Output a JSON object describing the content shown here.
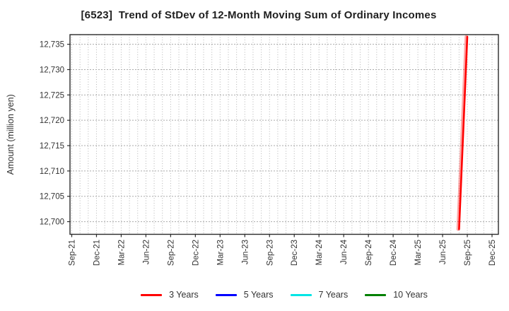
{
  "title": "[6523]  Trend of StDev of 12-Month Moving Sum of Ordinary Incomes",
  "chart_data": {
    "type": "line",
    "title": "[6523]  Trend of StDev of 12-Month Moving Sum of Ordinary Incomes",
    "ylabel": "Amount (million yen)",
    "xlabel": "",
    "grid": "dotted",
    "legend_position": "bottom",
    "x_tick_labels": [
      "Sep-21",
      "Dec-21",
      "Mar-22",
      "Jun-22",
      "Sep-22",
      "Dec-22",
      "Mar-23",
      "Jun-23",
      "Sep-23",
      "Dec-23",
      "Mar-24",
      "Jun-24",
      "Sep-24",
      "Dec-24",
      "Mar-25",
      "Jun-25",
      "Sep-25",
      "Dec-25"
    ],
    "months_per_tick": 3,
    "total_months": 52,
    "x_range": [
      "Sep-21",
      "Dec-25"
    ],
    "y_ticks": [
      12700,
      12705,
      12710,
      12715,
      12720,
      12725,
      12730,
      12735
    ],
    "y_tick_labels": [
      "12,700",
      "12,705",
      "12,710",
      "12,715",
      "12,720",
      "12,725",
      "12,730",
      "12,735"
    ],
    "ylim": [
      12697.5,
      12736.9
    ],
    "series": [
      {
        "name": "3 Years",
        "color": "#ff0000",
        "points": [
          {
            "month": "Aug-25",
            "value": 12698.5
          },
          {
            "month": "Sep-25",
            "value": 12736.5
          }
        ]
      },
      {
        "name": "5 Years",
        "color": "#0000ff",
        "points": []
      },
      {
        "name": "7 Years",
        "color": "#00e5e5",
        "points": []
      },
      {
        "name": "10 Years",
        "color": "#008000",
        "points": []
      }
    ],
    "colors": {
      "axis_border": "#2b2b2b",
      "grid_vertical": "#b5b5b5",
      "grid_horizontal": "#aaaaaa",
      "tick_label": "#333333",
      "title_text": "#1f1f1f"
    }
  }
}
